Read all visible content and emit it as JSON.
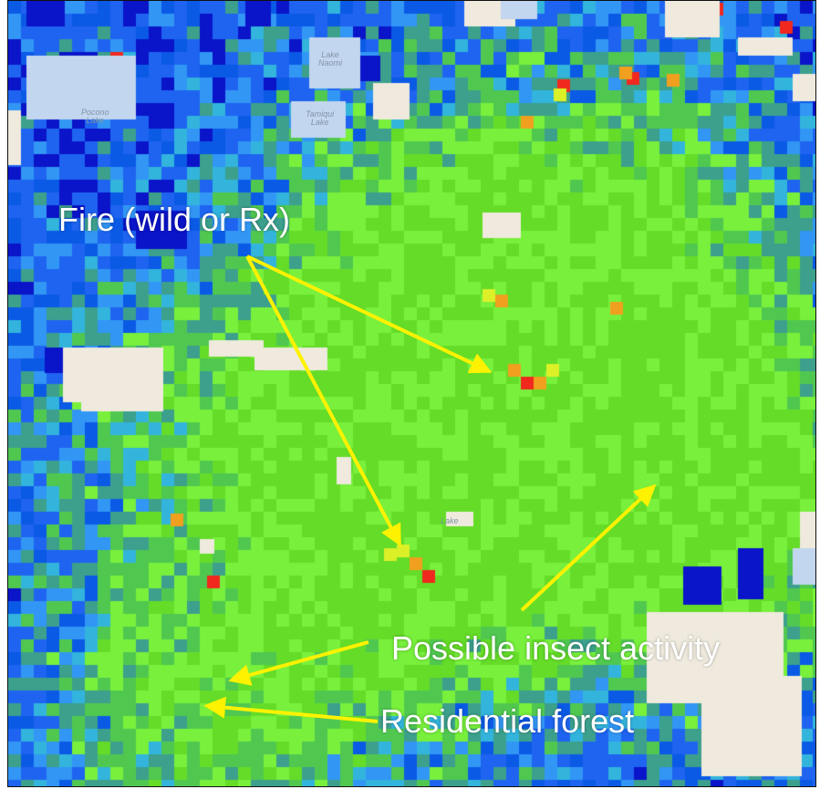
{
  "map": {
    "colors": {
      "background": "#0a5ae6",
      "deep_blue": "#0a14c8",
      "blue": "#1e64f0",
      "light_blue": "#3296f5",
      "cyan": "#32b4dc",
      "teal": "#3ca08c",
      "green": "#50c850",
      "lime": "#78f03c",
      "bright_green": "#64dc28",
      "yellow": "#dcf028",
      "orange": "#f0a01e",
      "red": "#f0281e",
      "land_tan": "#efeadd",
      "lake_blue": "#c3d6ef",
      "arrow": "#fff200"
    },
    "place_labels": [
      "Pocono\nLake",
      "Lake\nNaomi",
      "Tamiqui\nLake",
      "Lake"
    ]
  },
  "annotations": {
    "fire_label": "Fire (wild or Rx)",
    "insect_label": "Possible insect activity",
    "residential_label": "Residential forest"
  }
}
